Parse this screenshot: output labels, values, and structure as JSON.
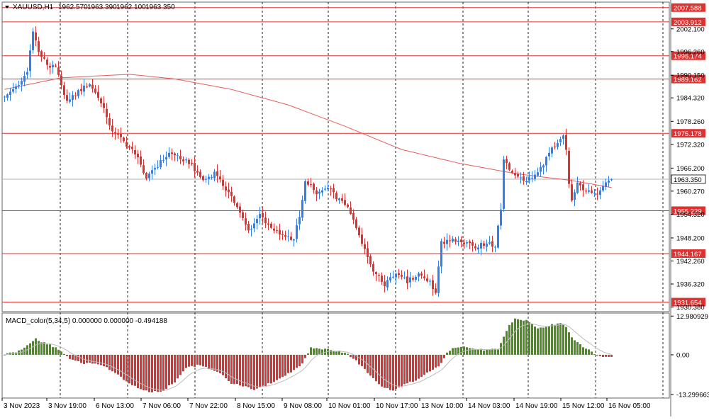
{
  "colors": {
    "bull": "#2f80ed",
    "bear": "#e03131",
    "ma": "#ea5b5b",
    "level": "#e03131",
    "grid": "#222222",
    "macd_pos": "#4a8f1a",
    "macd_neg": "#e03131",
    "signal": "#bdbdbd",
    "price_tag": "#ffffff"
  },
  "chart_data": [
    {
      "type": "candlestick",
      "header": {
        "symbol": "XAUUSD,H1",
        "open": "1962.570",
        "high": "1963.390",
        "low": "1962.100",
        "close": "1963.350"
      },
      "y_range": [
        1929.2,
        2009.0
      ],
      "y_ticks": [
        "2002.100",
        "1996.260",
        "1990.150",
        "1984.320",
        "1978.260",
        "1972.320",
        "1966.200",
        "1960.270",
        "1954.320",
        "1948.200",
        "1942.260",
        "1936.320",
        "1930.380"
      ],
      "current_price": "1963.350",
      "levels": [
        "2007.588",
        "2003.912",
        "1995.174",
        "1989.162",
        "1975.178",
        "1955.229",
        "1944.167",
        "1931.654"
      ],
      "x_labels": [
        "3 Nov 2023",
        "3 Nov 19:00",
        "6 Nov 13:00",
        "7 Nov 06:00",
        "7 Nov 22:00",
        "8 Nov 15:00",
        "9 Nov 08:00",
        "10 Nov 01:00",
        "10 Nov 17:00",
        "13 Nov 10:00",
        "14 Nov 03:00",
        "14 Nov 19:00",
        "15 Nov 12:00",
        "16 Nov 05:00"
      ],
      "anchors": [
        [
          0,
          1985
        ],
        [
          4,
          1987
        ],
        [
          8,
          1991
        ],
        [
          10,
          2002
        ],
        [
          12,
          1996
        ],
        [
          16,
          1992
        ],
        [
          18,
          1993
        ],
        [
          22,
          1983
        ],
        [
          26,
          1986
        ],
        [
          30,
          1988
        ],
        [
          34,
          1983
        ],
        [
          38,
          1976
        ],
        [
          42,
          1973
        ],
        [
          46,
          1970
        ],
        [
          50,
          1964
        ],
        [
          54,
          1967
        ],
        [
          58,
          1970
        ],
        [
          62,
          1969
        ],
        [
          66,
          1967
        ],
        [
          70,
          1963
        ],
        [
          74,
          1965
        ],
        [
          78,
          1961
        ],
        [
          82,
          1956
        ],
        [
          86,
          1950
        ],
        [
          90,
          1954
        ],
        [
          94,
          1951
        ],
        [
          98,
          1949
        ],
        [
          102,
          1948
        ],
        [
          104,
          1954
        ],
        [
          106,
          1963
        ],
        [
          110,
          1960
        ],
        [
          114,
          1961
        ],
        [
          118,
          1958
        ],
        [
          122,
          1955
        ],
        [
          126,
          1947
        ],
        [
          130,
          1940
        ],
        [
          134,
          1936
        ],
        [
          138,
          1939
        ],
        [
          142,
          1937
        ],
        [
          146,
          1939
        ],
        [
          150,
          1937
        ],
        [
          152,
          1934
        ],
        [
          154,
          1947
        ],
        [
          158,
          1948
        ],
        [
          162,
          1947
        ],
        [
          166,
          1946
        ],
        [
          170,
          1947
        ],
        [
          173,
          1946
        ],
        [
          175,
          1956
        ],
        [
          176,
          1968
        ],
        [
          180,
          1964
        ],
        [
          184,
          1963
        ],
        [
          188,
          1965
        ],
        [
          192,
          1970
        ],
        [
          195,
          1973
        ],
        [
          197,
          1975
        ],
        [
          198,
          1971
        ],
        [
          199,
          1962
        ],
        [
          200,
          1958
        ],
        [
          202,
          1962
        ],
        [
          206,
          1960
        ],
        [
          209,
          1959
        ],
        [
          212,
          1962
        ],
        [
          214,
          1963.35
        ]
      ],
      "ma": [
        [
          0,
          1986.5
        ],
        [
          20,
          1989.5
        ],
        [
          44,
          1990.4
        ],
        [
          60,
          1989.2
        ],
        [
          80,
          1986.5
        ],
        [
          100,
          1982.5
        ],
        [
          120,
          1977.0
        ],
        [
          140,
          1971.0
        ],
        [
          160,
          1967.5
        ],
        [
          180,
          1964.8
        ],
        [
          200,
          1963.0
        ],
        [
          214,
          1961.2
        ]
      ]
    },
    {
      "type": "bar",
      "title": "MACD_color(5,34,5) 0.000000 0.000000 -0.494188",
      "y_range": [
        -14.5,
        14.0
      ],
      "y_ticks": [
        "12.980929",
        "0.00",
        "-13.299663"
      ],
      "anchors": [
        [
          0,
          0.3
        ],
        [
          5,
          1.2
        ],
        [
          9,
          3.8
        ],
        [
          11,
          5.4
        ],
        [
          14,
          4.0
        ],
        [
          18,
          2.5
        ],
        [
          21,
          0.3
        ],
        [
          24,
          -1.8
        ],
        [
          28,
          -2.8
        ],
        [
          32,
          -3.0
        ],
        [
          36,
          -4.2
        ],
        [
          40,
          -6.8
        ],
        [
          44,
          -9.5
        ],
        [
          48,
          -11.5
        ],
        [
          52,
          -12.5
        ],
        [
          56,
          -12.0
        ],
        [
          60,
          -9.0
        ],
        [
          64,
          -4.5
        ],
        [
          68,
          -3.5
        ],
        [
          72,
          -4.5
        ],
        [
          76,
          -6.0
        ],
        [
          80,
          -9.5
        ],
        [
          84,
          -10.5
        ],
        [
          88,
          -11.8
        ],
        [
          92,
          -10.2
        ],
        [
          96,
          -8.5
        ],
        [
          100,
          -6.2
        ],
        [
          104,
          -4.0
        ],
        [
          106,
          -1.2
        ],
        [
          108,
          2.5
        ],
        [
          112,
          2.0
        ],
        [
          116,
          1.5
        ],
        [
          120,
          0.8
        ],
        [
          124,
          -2.0
        ],
        [
          128,
          -6.0
        ],
        [
          132,
          -10.0
        ],
        [
          134,
          -11.0
        ],
        [
          137,
          -12.0
        ],
        [
          141,
          -10.0
        ],
        [
          145,
          -8.5
        ],
        [
          149,
          -6.0
        ],
        [
          153,
          -4.0
        ],
        [
          156,
          0.5
        ],
        [
          158,
          2.0
        ],
        [
          162,
          2.5
        ],
        [
          166,
          2.0
        ],
        [
          170,
          1.5
        ],
        [
          174,
          2.0
        ],
        [
          176,
          6.0
        ],
        [
          178,
          10.0
        ],
        [
          180,
          12.0
        ],
        [
          184,
          11.5
        ],
        [
          188,
          9.0
        ],
        [
          192,
          9.8
        ],
        [
          196,
          10.8
        ],
        [
          198,
          9.5
        ],
        [
          200,
          6.0
        ],
        [
          204,
          2.5
        ],
        [
          208,
          0.5
        ],
        [
          210,
          -0.6
        ],
        [
          212,
          -0.8
        ],
        [
          214,
          -0.5
        ]
      ]
    }
  ]
}
